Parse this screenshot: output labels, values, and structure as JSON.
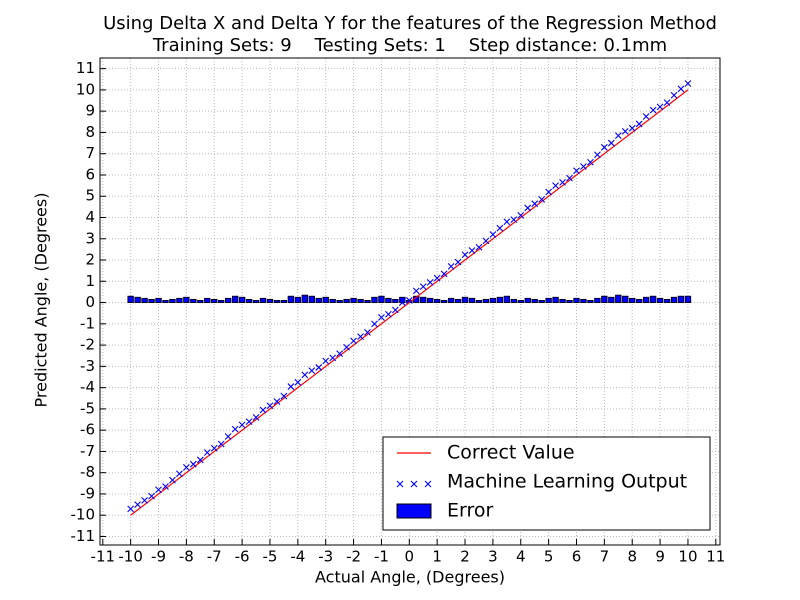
{
  "chart_data": {
    "type": "combo",
    "title": "Using Delta X and Delta Y for the features of the Regression Method",
    "subtitle": "Training Sets: 9    Testing Sets: 1    Step distance: 0.1mm",
    "x_label": "Actual Angle, (Degrees)",
    "y_label": "Predicted Angle, (Degrees)",
    "xlim": [
      -11.1,
      11.15
    ],
    "ylim": [
      -11.4,
      11.5
    ],
    "xticks": [
      -11,
      -10,
      -9,
      -8,
      -7,
      -6,
      -5,
      -4,
      -3,
      -2,
      -1,
      0,
      1,
      2,
      3,
      4,
      5,
      6,
      7,
      8,
      9,
      10,
      11
    ],
    "yticks": [
      -11,
      -10,
      -9,
      -8,
      -7,
      -6,
      -5,
      -4,
      -3,
      -2,
      -1,
      0,
      1,
      2,
      3,
      4,
      5,
      6,
      7,
      8,
      9,
      10,
      11
    ],
    "grid": true,
    "legend": "lower right",
    "series": [
      {
        "name": "Correct Value",
        "type": "line",
        "color": "#ff0000",
        "x": [
          -10,
          10
        ],
        "values": [
          -10,
          10
        ]
      },
      {
        "name": "Machine Learning Output",
        "type": "scatter",
        "color": "#0000ff",
        "x": [
          -10,
          -9.75,
          -9.5,
          -9.25,
          -9,
          -8.75,
          -8.5,
          -8.25,
          -8,
          -7.75,
          -7.5,
          -7.25,
          -7,
          -6.75,
          -6.5,
          -6.25,
          -6,
          -5.75,
          -5.5,
          -5.25,
          -5,
          -4.75,
          -4.5,
          -4.25,
          -4,
          -3.75,
          -3.5,
          -3.25,
          -3,
          -2.75,
          -2.5,
          -2.25,
          -2,
          -1.75,
          -1.5,
          -1.25,
          -1,
          -0.75,
          -0.5,
          -0.25,
          0,
          0.25,
          0.5,
          0.75,
          1,
          1.25,
          1.5,
          1.75,
          2,
          2.25,
          2.5,
          2.75,
          3,
          3.25,
          3.5,
          3.75,
          4,
          4.25,
          4.5,
          4.75,
          5,
          5.25,
          5.5,
          5.75,
          6,
          6.25,
          6.5,
          6.75,
          7,
          7.25,
          7.5,
          7.75,
          8,
          8.25,
          8.5,
          8.75,
          9,
          9.25,
          9.5,
          9.75,
          10
        ],
        "values": [
          -9.7,
          -9.5,
          -9.3,
          -9.1,
          -8.8,
          -8.65,
          -8.35,
          -8.05,
          -7.75,
          -7.6,
          -7.4,
          -7.05,
          -6.85,
          -6.65,
          -6.3,
          -5.95,
          -5.75,
          -5.6,
          -5.4,
          -5.05,
          -4.85,
          -4.65,
          -4.4,
          -3.95,
          -3.75,
          -3.4,
          -3.2,
          -3.05,
          -2.75,
          -2.6,
          -2.4,
          -2.1,
          -1.8,
          -1.6,
          -1.4,
          -1,
          -0.7,
          -0.55,
          -0.35,
          0,
          0.1,
          0.55,
          0.75,
          0.95,
          1.15,
          1.35,
          1.7,
          1.9,
          2.25,
          2.45,
          2.6,
          2.9,
          3.2,
          3.5,
          3.8,
          3.9,
          4.1,
          4.45,
          4.65,
          4.85,
          5.2,
          5.5,
          5.65,
          5.85,
          6.2,
          6.4,
          6.6,
          6.95,
          7.3,
          7.5,
          7.85,
          8.05,
          8.2,
          8.4,
          8.75,
          9.05,
          9.2,
          9.4,
          9.75,
          10.05,
          10.3
        ]
      },
      {
        "name": "Error",
        "type": "bar",
        "color": "#0000ff",
        "x": [
          -10,
          -9.75,
          -9.5,
          -9.25,
          -9,
          -8.75,
          -8.5,
          -8.25,
          -8,
          -7.75,
          -7.5,
          -7.25,
          -7,
          -6.75,
          -6.5,
          -6.25,
          -6,
          -5.75,
          -5.5,
          -5.25,
          -5,
          -4.75,
          -4.5,
          -4.25,
          -4,
          -3.75,
          -3.5,
          -3.25,
          -3,
          -2.75,
          -2.5,
          -2.25,
          -2,
          -1.75,
          -1.5,
          -1.25,
          -1,
          -0.75,
          -0.5,
          -0.25,
          0,
          0.25,
          0.5,
          0.75,
          1,
          1.25,
          1.5,
          1.75,
          2,
          2.25,
          2.5,
          2.75,
          3,
          3.25,
          3.5,
          3.75,
          4,
          4.25,
          4.5,
          4.75,
          5,
          5.25,
          5.5,
          5.75,
          6,
          6.25,
          6.5,
          6.75,
          7,
          7.25,
          7.5,
          7.75,
          8,
          8.25,
          8.5,
          8.75,
          9,
          9.25,
          9.5,
          9.75,
          10
        ],
        "values": [
          0.3,
          0.25,
          0.2,
          0.15,
          0.2,
          0.1,
          0.15,
          0.2,
          0.25,
          0.15,
          0.1,
          0.2,
          0.15,
          0.1,
          0.2,
          0.3,
          0.25,
          0.15,
          0.1,
          0.2,
          0.15,
          0.1,
          0.1,
          0.3,
          0.25,
          0.35,
          0.3,
          0.2,
          0.25,
          0.15,
          0.1,
          0.15,
          0.2,
          0.15,
          0.1,
          0.25,
          0.3,
          0.2,
          0.15,
          0.25,
          0.1,
          0.3,
          0.25,
          0.2,
          0.15,
          0.1,
          0.2,
          0.15,
          0.25,
          0.2,
          0.1,
          0.15,
          0.2,
          0.25,
          0.3,
          0.15,
          0.1,
          0.2,
          0.15,
          0.1,
          0.2,
          0.25,
          0.15,
          0.1,
          0.2,
          0.15,
          0.1,
          0.2,
          0.3,
          0.25,
          0.35,
          0.3,
          0.2,
          0.15,
          0.25,
          0.3,
          0.2,
          0.15,
          0.25,
          0.3,
          0.3
        ]
      }
    ]
  }
}
